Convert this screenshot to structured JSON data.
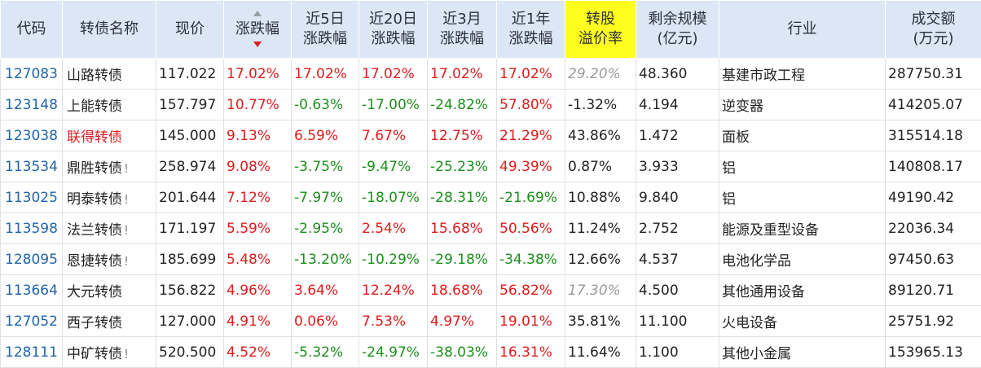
{
  "headers": {
    "code": "代码",
    "name": "转债名称",
    "price": "现价",
    "change": "涨跌幅",
    "c5_line1": "近5日",
    "c5_line2": "涨跌幅",
    "c20_line1": "近20日",
    "c20_line2": "涨跌幅",
    "c3m_line1": "近3月",
    "c3m_line2": "涨跌幅",
    "c1y_line1": "近1年",
    "c1y_line2": "涨跌幅",
    "prem_line1": "转股",
    "prem_line2": "溢价率",
    "remain_line1": "剩余规模",
    "remain_line2": "(亿元)",
    "industry": "行业",
    "volume_line1": "成交额",
    "volume_line2": "(万元)"
  },
  "rows": [
    {
      "code": "127083",
      "name": "山路转债",
      "flag": "",
      "price": "117.022",
      "change": "17.02%",
      "c5": "17.02%",
      "c20": "17.02%",
      "c3m": "17.02%",
      "c1y": "17.02%",
      "premium": "29.20%",
      "remain": "48.360",
      "industry": "基建市政工程",
      "volume": "287750.31"
    },
    {
      "code": "123148",
      "name": "上能转债",
      "flag": "",
      "price": "157.797",
      "change": "10.77%",
      "c5": "-0.63%",
      "c20": "-17.00%",
      "c3m": "-24.82%",
      "c1y": "57.80%",
      "premium": "-1.32%",
      "remain": "4.194",
      "industry": "逆变器",
      "volume": "414205.07"
    },
    {
      "code": "123038",
      "name": "联得转债",
      "flag": "",
      "price": "145.000",
      "change": "9.13%",
      "c5": "6.59%",
      "c20": "7.67%",
      "c3m": "12.75%",
      "c1y": "21.29%",
      "premium": "43.86%",
      "remain": "1.472",
      "industry": "面板",
      "volume": "315514.18"
    },
    {
      "code": "113534",
      "name": "鼎胜转债",
      "flag": "!",
      "price": "258.974",
      "change": "9.08%",
      "c5": "-3.75%",
      "c20": "-9.47%",
      "c3m": "-25.23%",
      "c1y": "49.39%",
      "premium": "0.87%",
      "remain": "3.933",
      "industry": "铝",
      "volume": "140808.17"
    },
    {
      "code": "113025",
      "name": "明泰转债",
      "flag": "!",
      "price": "201.644",
      "change": "7.12%",
      "c5": "-7.97%",
      "c20": "-18.07%",
      "c3m": "-28.31%",
      "c1y": "-21.69%",
      "premium": "10.88%",
      "remain": "9.840",
      "industry": "铝",
      "volume": "49190.42"
    },
    {
      "code": "113598",
      "name": "法兰转债",
      "flag": "!",
      "price": "171.197",
      "change": "5.59%",
      "c5": "-2.95%",
      "c20": "2.54%",
      "c3m": "15.68%",
      "c1y": "50.56%",
      "premium": "11.24%",
      "remain": "2.752",
      "industry": "能源及重型设备",
      "volume": "22036.34"
    },
    {
      "code": "128095",
      "name": "恩捷转债",
      "flag": "!",
      "price": "185.699",
      "change": "5.48%",
      "c5": "-13.20%",
      "c20": "-10.29%",
      "c3m": "-29.18%",
      "c1y": "-34.38%",
      "premium": "12.66%",
      "remain": "4.537",
      "industry": "电池化学品",
      "volume": "97450.63"
    },
    {
      "code": "113664",
      "name": "大元转债",
      "flag": "",
      "price": "156.822",
      "change": "4.96%",
      "c5": "3.64%",
      "c20": "12.24%",
      "c3m": "18.68%",
      "c1y": "56.82%",
      "premium": "17.30%",
      "remain": "4.500",
      "industry": "其他通用设备",
      "volume": "89120.71"
    },
    {
      "code": "127052",
      "name": "西子转债",
      "flag": "",
      "price": "127.000",
      "change": "4.91%",
      "c5": "0.06%",
      "c20": "7.53%",
      "c3m": "4.97%",
      "c1y": "19.01%",
      "premium": "35.81%",
      "remain": "11.100",
      "industry": "火电设备",
      "volume": "25751.92"
    },
    {
      "code": "128111",
      "name": "中矿转债",
      "flag": "!",
      "price": "520.500",
      "change": "4.52%",
      "c5": "-5.32%",
      "c20": "-24.97%",
      "c3m": "-38.03%",
      "c1y": "16.31%",
      "premium": "11.64%",
      "remain": "1.100",
      "industry": "其他小金属",
      "volume": "153965.13"
    }
  ],
  "colors": {
    "header_bg": "#dbe7f5",
    "highlight_header": "#ffff1f",
    "up": "#e01b1b",
    "down": "#1a8f1a",
    "code": "#1e63ad"
  }
}
